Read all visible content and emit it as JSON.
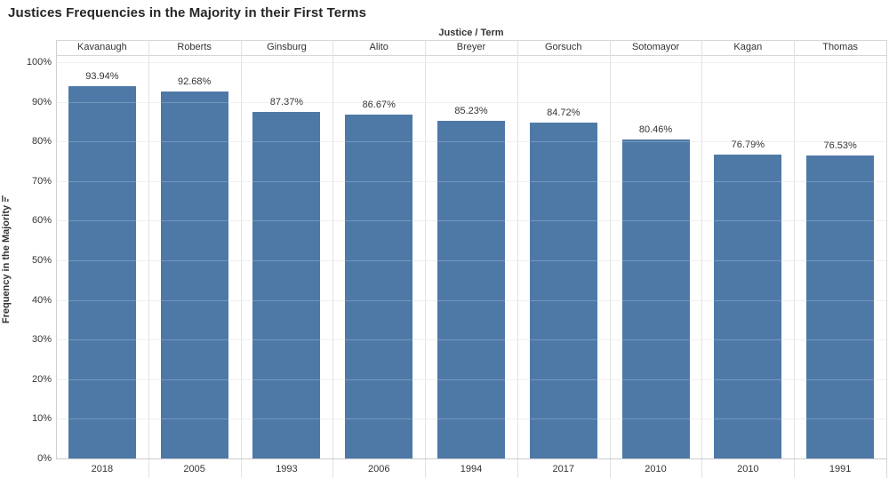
{
  "chart_data": {
    "type": "bar",
    "title": "Justices Frequencies in the Majority in their First Terms",
    "column_group_label": "Justice / Term",
    "categories": [
      "Kavanaugh",
      "Roberts",
      "Ginsburg",
      "Alito",
      "Breyer",
      "Gorsuch",
      "Sotomayor",
      "Kagan",
      "Thomas"
    ],
    "terms": [
      "2018",
      "2005",
      "1993",
      "2006",
      "1994",
      "2017",
      "2010",
      "2010",
      "1991"
    ],
    "values": [
      93.94,
      92.68,
      87.37,
      86.67,
      85.23,
      84.72,
      80.46,
      76.79,
      76.53
    ],
    "value_labels": [
      "93.94%",
      "92.68%",
      "87.37%",
      "86.67%",
      "85.23%",
      "84.72%",
      "80.46%",
      "76.79%",
      "76.53%"
    ],
    "ylabel": "Frequency in the Majority",
    "ylabel_sort_icon": "sort-descending-icon",
    "ylim": [
      0,
      100
    ],
    "y_tick_labels": [
      "0%",
      "10%",
      "20%",
      "30%",
      "40%",
      "50%",
      "60%",
      "70%",
      "80%",
      "90%",
      "100%"
    ],
    "y_tick_values": [
      0,
      10,
      20,
      30,
      40,
      50,
      60,
      70,
      80,
      90,
      100
    ],
    "grid": true,
    "legend": "none",
    "sort_order": "descending by value"
  },
  "colors": {
    "bar_fill": "#4e79a7",
    "grid_line": "#ebebeb",
    "axis_line": "#cccccc",
    "text": "#333333",
    "title_text": "#262626",
    "background": "#ffffff"
  }
}
